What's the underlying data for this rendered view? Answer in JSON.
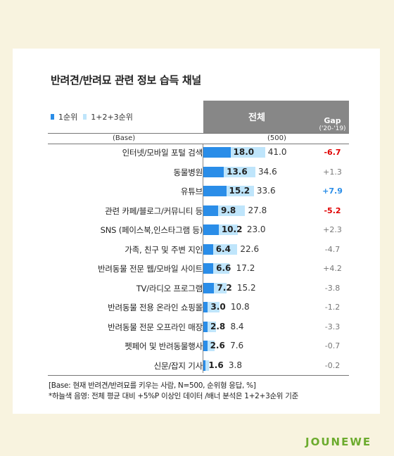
{
  "title": "반려견/반려묘 관련 정보 습득 채널",
  "legend": {
    "first": "1순위",
    "top3": "1+2+3순위"
  },
  "header": {
    "total": "전체",
    "gap": "Gap",
    "gap_sub": "('20-'19)"
  },
  "base": {
    "label": "(Base)",
    "value": "(500)"
  },
  "colors": {
    "first": "#2a8de8",
    "top3": "#bfe5fb",
    "gap_positive": "#2a8de8",
    "gap_negative": "#e00000",
    "gap_neutral": "#777777"
  },
  "chart_data": {
    "type": "bar",
    "categories": [
      "인터넷/모바일 포털 검색",
      "동물병원",
      "유튜브",
      "관련 카페/블로그/커뮤니티 등",
      "SNS (페이스북,인스타그램 등)",
      "가족, 친구 및 주변 지인",
      "반려동물 전문 웹/모바일 사이트",
      "TV/라디오 프로그램",
      "반려동물 전용 온라인 쇼핑몰",
      "반려동물 전문 오프라인 매장",
      "펫페어 및 반려동물행사",
      "신문/잡지 기사"
    ],
    "series": [
      {
        "name": "1순위",
        "values": [
          18.0,
          13.6,
          15.2,
          9.8,
          10.2,
          6.4,
          6.6,
          7.2,
          3.0,
          2.8,
          2.6,
          1.6
        ]
      },
      {
        "name": "1+2+3순위",
        "values": [
          41.0,
          34.6,
          33.6,
          27.8,
          23.0,
          22.6,
          17.2,
          15.2,
          10.8,
          8.4,
          7.6,
          3.8
        ]
      }
    ],
    "first_labels": [
      "18.0",
      "13.6",
      "15.2",
      "9.8",
      "10.2",
      "6.4",
      "6.6",
      "7.2",
      "3.0",
      "2.8",
      "2.6",
      "1.6"
    ],
    "top3_labels": [
      "41.0",
      "34.6",
      "33.6",
      "27.8",
      "23.0",
      "22.6",
      "17.2",
      "15.2",
      "10.8",
      "8.4",
      "7.6",
      "3.8"
    ],
    "gap": [
      "-6.7",
      "+1.3",
      "+7.9",
      "-5.2",
      "+2.3",
      "-4.7",
      "+4.2",
      "-3.8",
      "-1.2",
      "-3.3",
      "-0.7",
      "-0.2"
    ],
    "gap_highlight": [
      "negative",
      "none",
      "positive",
      "negative",
      "none",
      "none",
      "none",
      "none",
      "none",
      "none",
      "none",
      "none"
    ]
  },
  "notes": [
    "[Base: 현재 반려견/반려묘를 키우는 사람, N=500, 순위형 응답, %]",
    "*하늘색 음영: 전체 평균 대비 +5%P 이상인 데이터 /배너 분석은 1+2+3순위 기준"
  ],
  "logo": "JOUNEWE"
}
